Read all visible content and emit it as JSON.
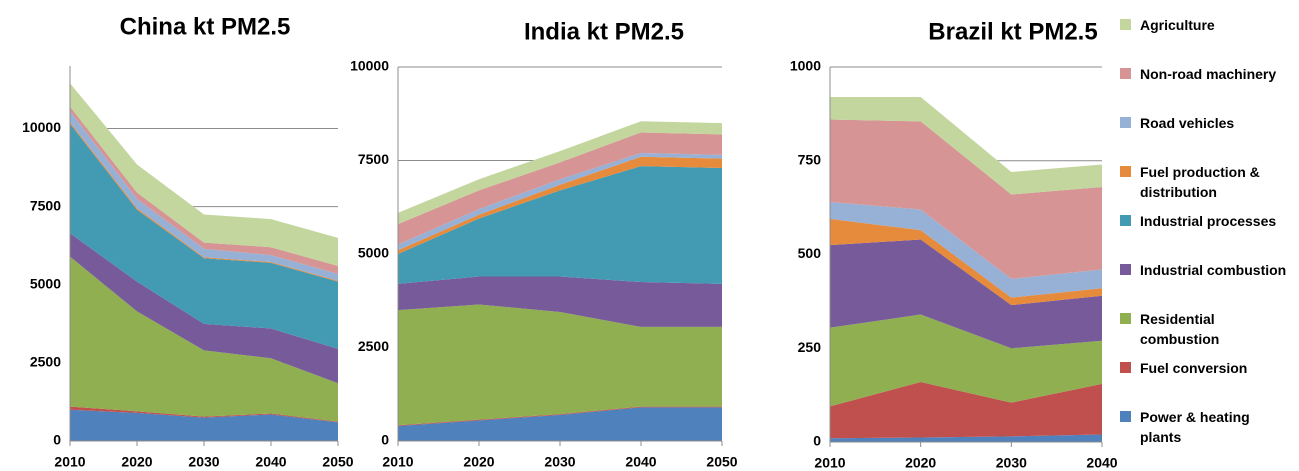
{
  "legend": {
    "items": [
      {
        "name": "Power & heating plants",
        "color": "#4f81bd"
      },
      {
        "name": "Fuel conversion",
        "color": "#c0504d"
      },
      {
        "name": "Residential combustion",
        "color": "#8faf50"
      },
      {
        "name": "Industrial combustion",
        "color": "#775a9a"
      },
      {
        "name": "Industrial processes",
        "color": "#429bb2"
      },
      {
        "name": "Fuel production & distribution",
        "color": "#e68a3c"
      },
      {
        "name": "Road vehicles",
        "color": "#97b0d6"
      },
      {
        "name": "Non-road machinery",
        "color": "#d69594"
      },
      {
        "name": "Agriculture",
        "color": "#c2d69e"
      }
    ]
  },
  "chart_data": [
    {
      "type": "area",
      "stacked": true,
      "title": "China kt PM2.5",
      "x": [
        2010,
        2020,
        2030,
        2040,
        2050
      ],
      "xlim": [
        2010,
        2050
      ],
      "xticks": [
        2010,
        2020,
        2030,
        2040,
        2050
      ],
      "ylim": [
        0,
        12000
      ],
      "yticks": [
        0,
        2500,
        5000,
        7500,
        10000
      ],
      "grid": true,
      "series": [
        {
          "values": [
            1000,
            900,
            750,
            850,
            600
          ]
        },
        {
          "values": [
            100,
            50,
            30,
            30,
            20
          ]
        },
        {
          "values": [
            4800,
            3200,
            2120,
            1770,
            1230
          ]
        },
        {
          "values": [
            750,
            950,
            850,
            950,
            1100
          ]
        },
        {
          "values": [
            3500,
            2300,
            2100,
            2100,
            2150
          ]
        },
        {
          "values": [
            50,
            50,
            30,
            30,
            30
          ]
        },
        {
          "values": [
            350,
            300,
            270,
            220,
            220
          ]
        },
        {
          "values": [
            150,
            200,
            200,
            250,
            250
          ]
        },
        {
          "values": [
            750,
            900,
            900,
            900,
            900
          ]
        }
      ]
    },
    {
      "type": "area",
      "stacked": true,
      "title": "India kt PM2.5",
      "x": [
        2010,
        2020,
        2030,
        2040,
        2050
      ],
      "xlim": [
        2010,
        2050
      ],
      "xticks": [
        2010,
        2020,
        2030,
        2040,
        2050
      ],
      "ylim": [
        0,
        10000
      ],
      "yticks": [
        0,
        2500,
        5000,
        7500,
        10000
      ],
      "grid": true,
      "series": [
        {
          "values": [
            400,
            550,
            700,
            900,
            900
          ]
        },
        {
          "values": [
            20,
            20,
            20,
            20,
            20
          ]
        },
        {
          "values": [
            3080,
            3080,
            2730,
            2130,
            2130
          ]
        },
        {
          "values": [
            700,
            750,
            950,
            1200,
            1150
          ]
        },
        {
          "values": [
            800,
            1550,
            2300,
            3100,
            3100
          ]
        },
        {
          "values": [
            100,
            100,
            150,
            250,
            250
          ]
        },
        {
          "values": [
            150,
            150,
            150,
            100,
            100
          ]
        },
        {
          "values": [
            550,
            500,
            450,
            550,
            550
          ]
        },
        {
          "values": [
            300,
            300,
            300,
            300,
            300
          ]
        }
      ]
    },
    {
      "type": "area",
      "stacked": true,
      "title": "Brazil kt PM2.5",
      "x": [
        2010,
        2020,
        2030,
        2040
      ],
      "xlim": [
        2010,
        2040
      ],
      "xticks": [
        2010,
        2020,
        2030,
        2040
      ],
      "ylim": [
        0,
        1000
      ],
      "yticks": [
        0,
        250,
        500,
        750,
        1000
      ],
      "grid": true,
      "series": [
        {
          "values": [
            10,
            12,
            15,
            20
          ]
        },
        {
          "values": [
            85,
            148,
            90,
            135
          ]
        },
        {
          "values": [
            210,
            180,
            145,
            115
          ]
        },
        {
          "values": [
            220,
            200,
            115,
            120
          ]
        },
        {
          "values": [
            0,
            0,
            0,
            0
          ]
        },
        {
          "values": [
            70,
            25,
            20,
            20
          ]
        },
        {
          "values": [
            45,
            55,
            50,
            50
          ]
        },
        {
          "values": [
            220,
            235,
            225,
            220
          ]
        },
        {
          "values": [
            60,
            65,
            60,
            60
          ]
        }
      ]
    }
  ]
}
